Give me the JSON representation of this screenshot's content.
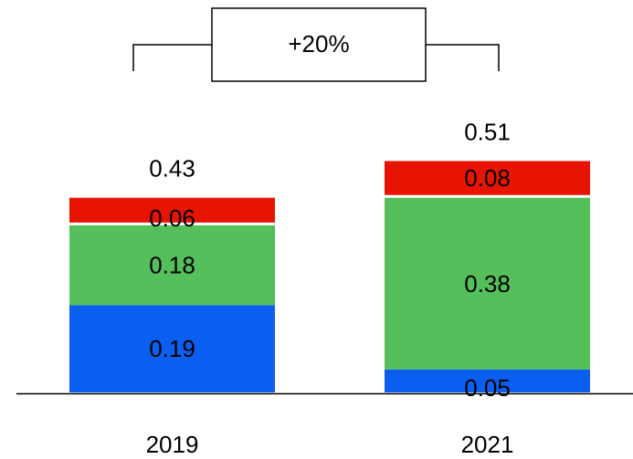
{
  "chart_data": {
    "type": "bar",
    "stacked": true,
    "categories": [
      "2019",
      "2021"
    ],
    "series": [
      {
        "color": "#0a5ff0",
        "values": [
          0.19,
          0.05
        ]
      },
      {
        "color": "#55bf5b",
        "values": [
          0.18,
          0.38
        ]
      },
      {
        "color": "#e81402",
        "values": [
          0.06,
          0.08
        ]
      }
    ],
    "totals": [
      "0.43",
      "0.51"
    ],
    "segment_labels": [
      [
        "0.19",
        "0.05"
      ],
      [
        "0.18",
        "0.38"
      ],
      [
        "0.06",
        "0.08"
      ]
    ],
    "annotation": {
      "text": "+20%"
    },
    "title": "",
    "xlabel": "",
    "ylabel": "",
    "grid": false,
    "legend": "none"
  }
}
